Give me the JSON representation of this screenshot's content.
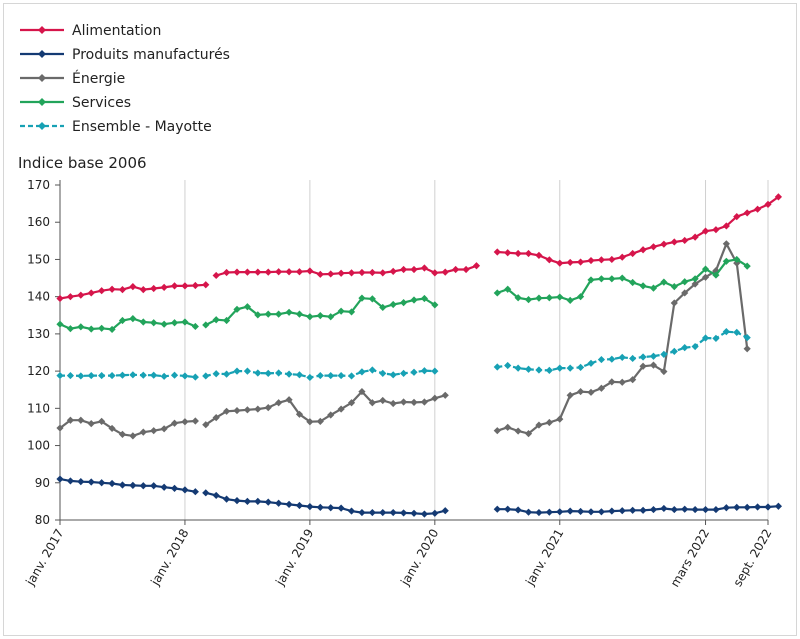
{
  "chart_data": {
    "type": "line",
    "ylabel": "Indice base 2006",
    "ylim": [
      80,
      170
    ],
    "yticks": [
      80,
      90,
      100,
      110,
      120,
      130,
      140,
      150,
      160,
      170
    ],
    "x_start": "2017-01",
    "x_end": "2022-09",
    "xticks": [
      {
        "date": "2017-01",
        "label": "janv. 2017"
      },
      {
        "date": "2018-01",
        "label": "janv. 2018"
      },
      {
        "date": "2019-01",
        "label": "janv. 2019"
      },
      {
        "date": "2020-01",
        "label": "janv. 2020"
      },
      {
        "date": "2021-01",
        "label": "janv. 2021"
      },
      {
        "date": "2022-03",
        "label": "mars 2022"
      },
      {
        "date": "2022-09",
        "label": "sept. 2022"
      }
    ],
    "grid": "vertical",
    "legend_position": "top-left",
    "series": [
      {
        "name": "Alimentation",
        "color": "#d6154b",
        "dashed": false,
        "segments": [
          {
            "start": "2017-01",
            "values": [
              139.5,
              140.0,
              140.4,
              141.0,
              141.6,
              142.0,
              141.9,
              142.7,
              141.9,
              142.2,
              142.5,
              142.9,
              142.9,
              143.0,
              143.2
            ]
          },
          {
            "start": "2018-04",
            "values": [
              145.7,
              146.5,
              146.6,
              146.6,
              146.6,
              146.6,
              146.7,
              146.7,
              146.7,
              146.9,
              146.0,
              146.1,
              146.3,
              146.4,
              146.5,
              146.5,
              146.4,
              146.8,
              147.3,
              147.3,
              147.7,
              146.4,
              146.6,
              147.3,
              147.3,
              148.3
            ]
          },
          {
            "start": "2020-07",
            "values": [
              152.0,
              151.8,
              151.6,
              151.6,
              151.1,
              149.9,
              149.0,
              149.2,
              149.3,
              149.7,
              149.9,
              150.0,
              150.6,
              151.6,
              152.6,
              153.4,
              154.1,
              154.7,
              155.1,
              156.0,
              157.6,
              158.0,
              159.0,
              161.5,
              162.5,
              163.5,
              164.8,
              166.8
            ]
          }
        ]
      },
      {
        "name": "Produits manufacturés",
        "color": "#143a73",
        "dashed": false,
        "segments": [
          {
            "start": "2017-01",
            "values": [
              91.0,
              90.5,
              90.3,
              90.2,
              90.0,
              89.8,
              89.4,
              89.3,
              89.2,
              89.2,
              88.8,
              88.5,
              88.1,
              87.6
            ]
          },
          {
            "start": "2018-03",
            "values": [
              87.3,
              86.6,
              85.6,
              85.2,
              85.0,
              85.0,
              84.8,
              84.5,
              84.2,
              83.9,
              83.6,
              83.4,
              83.3,
              83.2,
              82.4,
              82.0,
              82.0,
              82.0,
              82.0,
              81.9,
              81.8,
              81.6,
              81.8,
              82.5
            ]
          },
          {
            "start": "2020-07",
            "values": [
              82.9,
              82.9,
              82.7,
              82.1,
              82.0,
              82.1,
              82.2,
              82.4,
              82.3,
              82.2,
              82.2,
              82.4,
              82.5,
              82.6,
              82.6,
              82.8,
              83.1,
              82.8,
              82.9,
              82.8,
              82.8,
              82.8,
              83.3,
              83.4,
              83.4,
              83.5,
              83.5,
              83.7
            ]
          }
        ]
      },
      {
        "name": "Énergie",
        "color": "#6a6a6a",
        "dashed": false,
        "segments": [
          {
            "start": "2017-01",
            "values": [
              104.7,
              106.8,
              106.8,
              105.9,
              106.5,
              104.6,
              103.0,
              102.6,
              103.6,
              104.0,
              104.5,
              106.0,
              106.4,
              106.6
            ]
          },
          {
            "start": "2018-03",
            "values": [
              105.6,
              107.5,
              109.2,
              109.4,
              109.6,
              109.8,
              110.2,
              111.5,
              112.3,
              108.4,
              106.4,
              106.5,
              108.2,
              109.8,
              111.5,
              114.5,
              111.5,
              112.1,
              111.3,
              111.7,
              111.6,
              111.7,
              112.7,
              113.5
            ]
          },
          {
            "start": "2020-07",
            "values": [
              104.0,
              104.9,
              103.9,
              103.2,
              105.5,
              106.2,
              107.1,
              113.5,
              114.5,
              114.3,
              115.4,
              117.1,
              117.0,
              117.7,
              121.3,
              121.6,
              119.9,
              138.3,
              141.0,
              143.4,
              145.2,
              147.0,
              154.2,
              149.0,
              126.0
            ]
          }
        ]
      },
      {
        "name": "Services",
        "color": "#22a45b",
        "dashed": false,
        "segments": [
          {
            "start": "2017-01",
            "values": [
              132.6,
              131.4,
              131.9,
              131.3,
              131.5,
              131.2,
              133.6,
              134.1,
              133.2,
              133.0,
              132.6,
              133.0,
              133.2,
              132.0
            ]
          },
          {
            "start": "2018-03",
            "values": [
              132.4,
              133.8,
              133.6,
              136.6,
              137.3,
              135.1,
              135.3,
              135.3,
              135.8,
              135.3,
              134.6,
              134.9,
              134.6,
              136.1,
              135.9,
              139.6,
              139.4,
              137.1,
              137.9,
              138.4,
              139.1,
              139.5,
              137.8
            ]
          },
          {
            "start": "2020-07",
            "values": [
              141.0,
              142.0,
              139.7,
              139.2,
              139.6,
              139.7,
              139.9,
              139.0,
              140.0,
              144.5,
              144.8,
              144.8,
              145.0,
              143.8,
              142.9,
              142.3,
              143.9,
              142.7,
              144.0,
              144.8,
              147.4,
              145.8,
              149.5,
              150.0,
              148.2
            ]
          }
        ]
      },
      {
        "name": "Ensemble - Mayotte",
        "color": "#17a1b4",
        "dashed": true,
        "segments": [
          {
            "start": "2017-01",
            "values": [
              118.8,
              118.8,
              118.7,
              118.8,
              118.8,
              118.8,
              118.9,
              119.0,
              118.9,
              118.9,
              118.6,
              118.9,
              118.7,
              118.4
            ]
          },
          {
            "start": "2018-03",
            "values": [
              118.7,
              119.3,
              119.2,
              120.0,
              120.0,
              119.5,
              119.4,
              119.5,
              119.2,
              119.0,
              118.3,
              118.8,
              118.8,
              118.8,
              118.7,
              119.8,
              120.3,
              119.4,
              119.0,
              119.4,
              119.7,
              120.1,
              120.0
            ]
          },
          {
            "start": "2020-07",
            "values": [
              121.1,
              121.5,
              120.8,
              120.5,
              120.3,
              120.2,
              120.8,
              120.8,
              121.0,
              122.1,
              123.1,
              123.2,
              123.7,
              123.4,
              123.8,
              124.0,
              124.5,
              125.3,
              126.3,
              126.6,
              128.9,
              128.8,
              130.6,
              130.4,
              129.0
            ]
          }
        ]
      }
    ]
  }
}
